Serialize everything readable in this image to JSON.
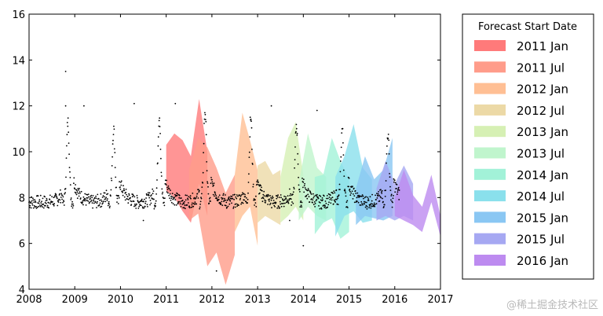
{
  "chart_data": {
    "type": "scatter",
    "title": "",
    "xlabel": "",
    "ylabel": "",
    "xlim": [
      2008,
      2017
    ],
    "ylim": [
      4,
      16
    ],
    "x_ticks": [
      "2008",
      "2009",
      "2010",
      "2011",
      "2012",
      "2013",
      "2014",
      "2015",
      "2016",
      "2017"
    ],
    "y_ticks": [
      "4",
      "6",
      "8",
      "10",
      "12",
      "14",
      "16"
    ],
    "grid": false,
    "observations": {
      "marker": "dot",
      "color": "#000000",
      "pattern": "annual seasonal cycle with baseline near 7.5-8 and a sharp peak each year around November",
      "x_range": [
        2008,
        2016.1
      ],
      "baseline": 7.8,
      "seasonal_peak_values": [
        {
          "year": 2008.85,
          "peak": 11.3
        },
        {
          "year": 2009.85,
          "peak": 11.0
        },
        {
          "year": 2010.85,
          "peak": 11.6
        },
        {
          "year": 2011.85,
          "peak": 11.8
        },
        {
          "year": 2012.85,
          "peak": 11.5
        },
        {
          "year": 2013.85,
          "peak": 11.2
        },
        {
          "year": 2014.85,
          "peak": 11.0
        },
        {
          "year": 2015.85,
          "peak": 10.8
        }
      ],
      "outliers": [
        {
          "x": 2008.8,
          "y": 13.5
        },
        {
          "x": 2008.8,
          "y": 12.0
        },
        {
          "x": 2009.2,
          "y": 12.0
        },
        {
          "x": 2010.3,
          "y": 12.1
        },
        {
          "x": 2011.2,
          "y": 12.1
        },
        {
          "x": 2012.1,
          "y": 4.8
        },
        {
          "x": 2013.3,
          "y": 12.0
        },
        {
          "x": 2014.0,
          "y": 5.9
        },
        {
          "x": 2014.3,
          "y": 11.8
        },
        {
          "x": 2010.5,
          "y": 7.0
        },
        {
          "x": 2013.7,
          "y": 7.0
        }
      ]
    },
    "legend": {
      "title": "Forecast Start Date",
      "placement": "outside-right"
    },
    "series": [
      {
        "name": "2011 Jan",
        "color": "#ff7a7a",
        "start": 2011.0,
        "end": 2011.9,
        "lower": [
          8.3,
          8.0,
          7.4,
          6.9,
          8.6,
          7.2
        ],
        "upper": [
          10.3,
          10.8,
          10.5,
          9.8,
          12.3,
          10.0
        ]
      },
      {
        "name": "2011 Jul",
        "color": "#ff9c8a",
        "start": 2011.5,
        "end": 2012.5,
        "lower": [
          7.0,
          7.3,
          5.0,
          5.6,
          4.2,
          5.5
        ],
        "upper": [
          9.2,
          10.6,
          10.2,
          9.3,
          8.2,
          9.0
        ]
      },
      {
        "name": "2012 Jan",
        "color": "#ffbf94",
        "start": 2012.5,
        "end": 2013.0,
        "lower": [
          6.5,
          7.2,
          7.6,
          5.9
        ],
        "upper": [
          9.0,
          11.7,
          10.5,
          9.2
        ]
      },
      {
        "name": "2012 Jul",
        "color": "#ecd9a6",
        "start": 2013.0,
        "end": 2013.5,
        "lower": [
          6.9,
          7.2,
          7.0,
          6.8
        ],
        "upper": [
          9.4,
          9.6,
          9.0,
          9.2
        ]
      },
      {
        "name": "2013 Jan",
        "color": "#d6f0b4",
        "start": 2013.5,
        "end": 2014.0,
        "lower": [
          6.9,
          7.2,
          7.6,
          7.0
        ],
        "upper": [
          8.9,
          10.6,
          11.3,
          9.0
        ]
      },
      {
        "name": "2013 Jul",
        "color": "#c0f5cd",
        "start": 2013.9,
        "end": 2014.5,
        "lower": [
          7.0,
          7.6,
          7.2,
          7.0
        ],
        "upper": [
          8.6,
          10.8,
          9.3,
          8.9
        ]
      },
      {
        "name": "2014 Jan",
        "color": "#a2f2d8",
        "start": 2014.25,
        "end": 2015.0,
        "lower": [
          6.4,
          6.9,
          7.1,
          6.2,
          6.5
        ],
        "upper": [
          8.9,
          9.0,
          10.6,
          9.6,
          8.8
        ]
      },
      {
        "name": "2014 Jul",
        "color": "#8ae0ec",
        "start": 2014.7,
        "end": 2015.5,
        "lower": [
          6.3,
          7.2,
          7.4,
          6.9,
          7.0
        ],
        "upper": [
          8.9,
          9.8,
          11.2,
          9.3,
          8.8
        ]
      },
      {
        "name": "2015 Jan",
        "color": "#8ac7f3",
        "start": 2015.15,
        "end": 2015.95,
        "lower": [
          6.8,
          7.2,
          7.1,
          7.0,
          7.2
        ],
        "upper": [
          8.4,
          9.8,
          8.8,
          9.2,
          10.6
        ]
      },
      {
        "name": "2015 Jul",
        "color": "#a6a8f2",
        "start": 2015.6,
        "end": 2016.4,
        "lower": [
          7.0,
          7.2,
          7.0,
          7.2,
          7.0
        ],
        "upper": [
          8.4,
          9.6,
          8.6,
          9.4,
          8.6
        ]
      },
      {
        "name": "2016 Jan",
        "color": "#bd8bf0",
        "start": 2016.0,
        "end": 2017.0,
        "lower": [
          7.2,
          7.0,
          6.8,
          6.5,
          7.8,
          6.3
        ],
        "upper": [
          8.0,
          9.2,
          8.1,
          7.6,
          9.0,
          7.2
        ]
      }
    ]
  },
  "watermark": "@稀土掘金技术社区"
}
